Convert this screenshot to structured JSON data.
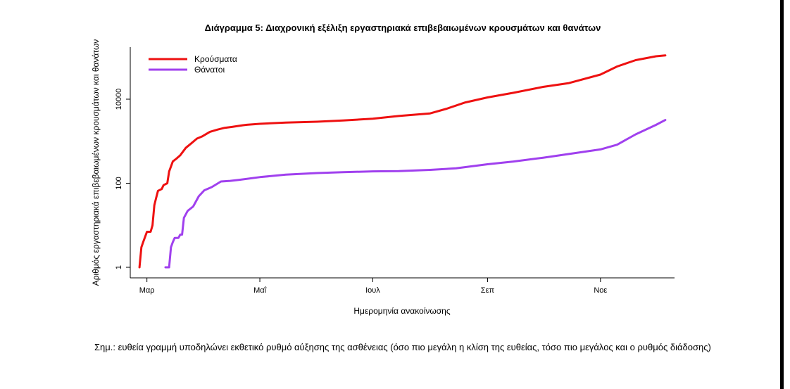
{
  "chart_data": {
    "type": "line",
    "title": "Διάγραμμα 5: Διαχρονική εξέλιξη εργαστηριακά επιβεβαιωμένων κρουσμάτων και θανάτων",
    "xlabel": "Ημερομηνία ανακοίνωσης",
    "ylabel": "Αριθμός εργαστηριακά επιβεβαιωμένων κρουσμάτων και θανάτων",
    "y_scale": "log",
    "ylim": [
      1,
      100000
    ],
    "y_ticks": [
      1,
      100,
      10000
    ],
    "y_tick_labels": [
      "1",
      "100",
      "10000"
    ],
    "xlim": [
      "2020-02-21",
      "2020-12-11"
    ],
    "x_ticks": [
      "2020-03-01",
      "2020-05-01",
      "2020-07-01",
      "2020-09-01",
      "2020-11-01"
    ],
    "x_tick_labels": [
      "Μαρ",
      "Μαΐ",
      "Ιουλ",
      "Σεπ",
      "Νοε"
    ],
    "legend_position": "top-left",
    "series": [
      {
        "name": "Κρούσματα",
        "color": "#ee1111",
        "points": [
          [
            "2020-02-26",
            1
          ],
          [
            "2020-02-27",
            3
          ],
          [
            "2020-02-28",
            4
          ],
          [
            "2020-03-01",
            7
          ],
          [
            "2020-03-03",
            7
          ],
          [
            "2020-03-04",
            10
          ],
          [
            "2020-03-05",
            30
          ],
          [
            "2020-03-06",
            45
          ],
          [
            "2020-03-07",
            66
          ],
          [
            "2020-03-09",
            73
          ],
          [
            "2020-03-10",
            90
          ],
          [
            "2020-03-12",
            100
          ],
          [
            "2020-03-13",
            190
          ],
          [
            "2020-03-15",
            331
          ],
          [
            "2020-03-17",
            387
          ],
          [
            "2020-03-19",
            464
          ],
          [
            "2020-03-22",
            695
          ],
          [
            "2020-03-25",
            892
          ],
          [
            "2020-03-28",
            1156
          ],
          [
            "2020-03-31",
            1314
          ],
          [
            "2020-04-04",
            1673
          ],
          [
            "2020-04-08",
            1884
          ],
          [
            "2020-04-12",
            2081
          ],
          [
            "2020-04-16",
            2192
          ],
          [
            "2020-04-22",
            2401
          ],
          [
            "2020-04-24",
            2463
          ],
          [
            "2020-05-01",
            2591
          ],
          [
            "2020-05-15",
            2780
          ],
          [
            "2020-06-01",
            2918
          ],
          [
            "2020-06-15",
            3121
          ],
          [
            "2020-07-01",
            3432
          ],
          [
            "2020-07-15",
            3983
          ],
          [
            "2020-08-01",
            4587
          ],
          [
            "2020-08-10",
            5942
          ],
          [
            "2020-08-20",
            8381
          ],
          [
            "2020-09-01",
            10998
          ],
          [
            "2020-09-15",
            14193
          ],
          [
            "2020-10-01",
            19613
          ],
          [
            "2020-10-15",
            24166
          ],
          [
            "2020-11-01",
            38549
          ],
          [
            "2020-11-10",
            60000
          ],
          [
            "2020-11-20",
            85000
          ],
          [
            "2020-12-01",
            105000
          ],
          [
            "2020-12-06",
            110000
          ]
        ]
      },
      {
        "name": "Θάνατοι",
        "color": "#a040ee",
        "points": [
          [
            "2020-03-11",
            1
          ],
          [
            "2020-03-13",
            1
          ],
          [
            "2020-03-14",
            3
          ],
          [
            "2020-03-15",
            4
          ],
          [
            "2020-03-16",
            5
          ],
          [
            "2020-03-18",
            5
          ],
          [
            "2020-03-19",
            6
          ],
          [
            "2020-03-20",
            6
          ],
          [
            "2020-03-21",
            15
          ],
          [
            "2020-03-23",
            22
          ],
          [
            "2020-03-26",
            28
          ],
          [
            "2020-03-29",
            49
          ],
          [
            "2020-04-01",
            68
          ],
          [
            "2020-04-05",
            81
          ],
          [
            "2020-04-10",
            110
          ],
          [
            "2020-04-15",
            114
          ],
          [
            "2020-04-20",
            121
          ],
          [
            "2020-05-01",
            140
          ],
          [
            "2020-05-15",
            160
          ],
          [
            "2020-06-01",
            175
          ],
          [
            "2020-06-15",
            183
          ],
          [
            "2020-07-01",
            192
          ],
          [
            "2020-07-15",
            194
          ],
          [
            "2020-08-01",
            208
          ],
          [
            "2020-08-15",
            226
          ],
          [
            "2020-09-01",
            283
          ],
          [
            "2020-09-15",
            329
          ],
          [
            "2020-10-01",
            405
          ],
          [
            "2020-10-15",
            496
          ],
          [
            "2020-11-01",
            638
          ],
          [
            "2020-11-10",
            826
          ],
          [
            "2020-11-20",
            1457
          ],
          [
            "2020-12-01",
            2448
          ],
          [
            "2020-12-06",
            3190
          ]
        ]
      }
    ]
  },
  "note": "Σημ.: ευθεία γραμμή υποδηλώνει εκθετικό ρυθμό αύξησης της ασθένειας (όσο πιο μεγάλη η κλίση της ευθείας, τόσο πιο μεγάλος και ο ρυθμός διάδοσης)"
}
